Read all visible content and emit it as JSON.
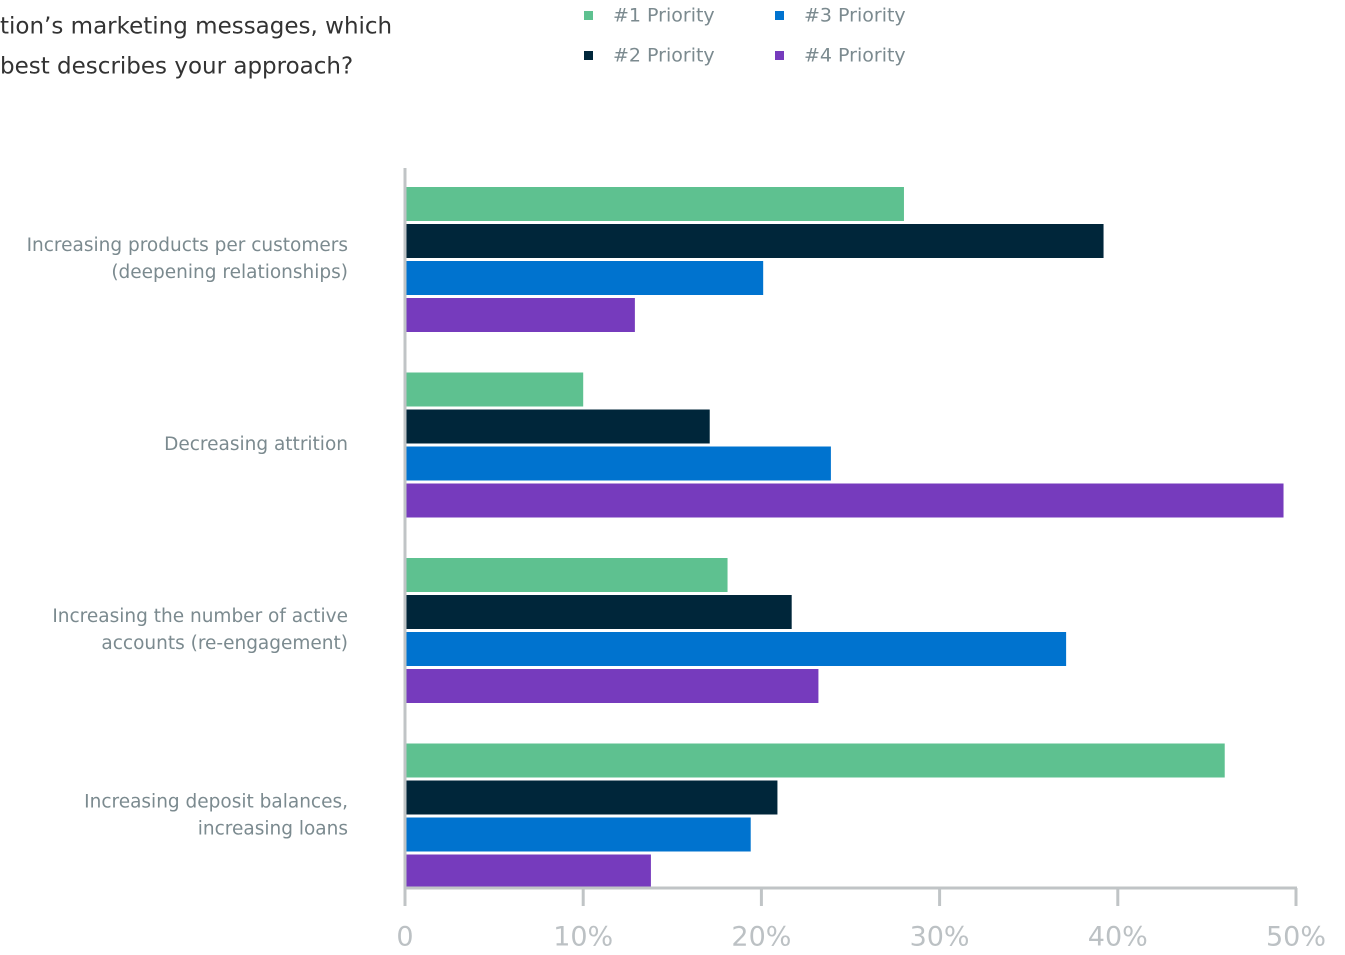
{
  "chart_data": {
    "type": "barh",
    "title": [
      "tion’s marketing messages, which",
      "best describes your approach?"
    ],
    "categories": [
      [
        "Increasing products per customers",
        "(deepening relationships)"
      ],
      [
        "Decreasing attrition"
      ],
      [
        "Increasing the number of active",
        "accounts (re-engagement)"
      ],
      [
        "Increasing deposit balances,",
        "increasing loans"
      ]
    ],
    "series": [
      {
        "name": "#1 Priority",
        "color": "#5ec190",
        "values": [
          28,
          10,
          18.1,
          46
        ]
      },
      {
        "name": "#2 Priority",
        "color": "#00263a",
        "values": [
          39.2,
          17.1,
          21.7,
          20.9
        ]
      },
      {
        "name": "#3 Priority",
        "color": "#0073cf",
        "values": [
          20.1,
          23.9,
          37.1,
          19.4
        ]
      },
      {
        "name": "#4 Priority",
        "color": "#763bbd",
        "values": [
          12.9,
          49.3,
          23.2,
          13.8
        ]
      }
    ],
    "xlim": [
      0,
      50
    ],
    "xticks": [
      0,
      {
        "value": 10,
        "label": "10%"
      },
      {
        "value": 20,
        "label": "20%"
      },
      {
        "value": 30,
        "label": "30%"
      },
      {
        "value": 40,
        "label": "40%"
      },
      {
        "value": 50,
        "label": "50%"
      }
    ]
  }
}
